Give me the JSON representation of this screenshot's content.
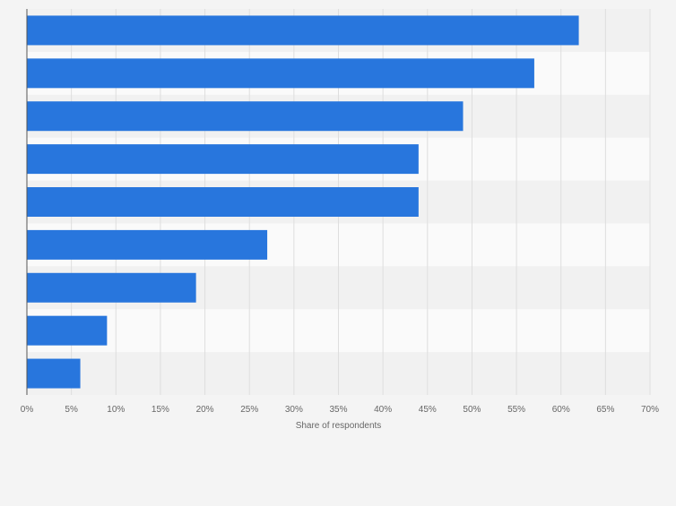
{
  "chart_data": {
    "type": "bar",
    "orientation": "horizontal",
    "categories": [
      "",
      "",
      "",
      "",
      "",
      "",
      "",
      "",
      ""
    ],
    "values": [
      62,
      57,
      49,
      44,
      44,
      27,
      19,
      9,
      6
    ],
    "xlabel": "Share of respondents",
    "xlim": [
      0,
      70
    ],
    "xticks": [
      "0%",
      "5%",
      "10%",
      "15%",
      "20%",
      "25%",
      "30%",
      "35%",
      "40%",
      "45%",
      "50%",
      "55%",
      "60%",
      "65%",
      "70%"
    ],
    "grid": true,
    "legend": "none",
    "colors": {
      "bar": "#2876dd",
      "band_light": "#fafafa",
      "band_dark": "#f1f1f1",
      "grid": "#dedede",
      "axis": "#555555",
      "tick_text": "#666666",
      "page_bg": "#f4f4f4"
    }
  }
}
